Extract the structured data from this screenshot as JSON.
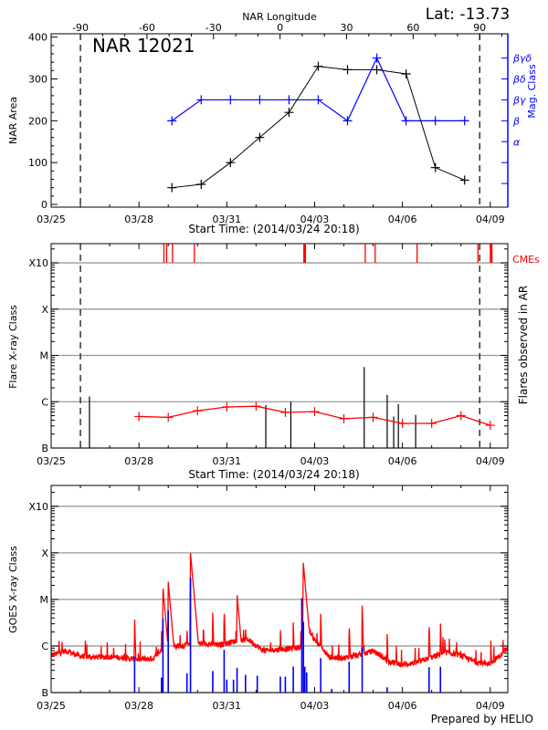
{
  "footer": "Prepared by HELIO",
  "chart_data": [
    {
      "type": "line",
      "title": "NAR 12021",
      "annotation": "Lat: -13.73",
      "top_xlabel": "NAR Longitude",
      "xlabel": "Start Time: (2014/03/24 20:18)",
      "ylabel": "NAR Area",
      "y2label": "Mag. Class",
      "xlim": [
        "03/25 00:00",
        "04/09 14:24"
      ],
      "ylim": [
        -6.5,
        408
      ],
      "yticks": [
        0,
        100,
        200,
        300,
        400
      ],
      "xticks": [
        "03/25",
        "03/28",
        "03/31",
        "04/03",
        "04/06",
        "04/09"
      ],
      "top_ticks": [
        -90,
        -60,
        -30,
        0,
        30,
        60,
        90
      ],
      "limb_lines": [
        "03/26 00:00",
        "04/08 15:20"
      ],
      "grid": false,
      "x": [
        "03/29 03:00",
        "03/30 03:00",
        "03/31 03:00",
        "04/01 03:00",
        "04/02 03:00",
        "04/03 03:00",
        "04/04 03:00",
        "04/05 03:00",
        "04/06 03:00",
        "04/07 03:00",
        "04/08 03:00"
      ],
      "series": [
        {
          "values": [
            40,
            48,
            100,
            160,
            220,
            330,
            322,
            322,
            312,
            88,
            58
          ],
          "color": "#000000"
        }
      ],
      "mag_class": {
        "levels": [
          "",
          "",
          "α",
          "β",
          "βγ",
          "βδ",
          "βγδ"
        ],
        "values": [
          "β",
          "βγ",
          "βγ",
          "βγ",
          "βγ",
          "βγ",
          "β",
          "βγδ",
          "β",
          "β",
          "β"
        ],
        "color": "#0000ff"
      }
    },
    {
      "type": "line",
      "xlabel": "Start Time: (2014/03/24 20:18)",
      "ylabel": "Flare X-ray Class",
      "y2label": "Flares observed in AR",
      "cme_label": "CMEs",
      "yscale": "log",
      "xlim": [
        "03/25 00:00",
        "04/09 14:24"
      ],
      "ylim": [
        1e-07,
        0.0026
      ],
      "yticks": [
        {
          "label": "B",
          "value": 1e-07
        },
        {
          "label": "C",
          "value": 1e-06
        },
        {
          "label": "M",
          "value": 1e-05
        },
        {
          "label": "X",
          "value": 0.0001
        },
        {
          "label": "X10",
          "value": 0.001
        }
      ],
      "xticks": [
        "03/25",
        "03/28",
        "03/31",
        "04/03",
        "04/06",
        "04/09"
      ],
      "limb_lines": [
        "03/26 00:00",
        "04/08 15:20"
      ],
      "grid": true,
      "background_series": {
        "color": "#ff0000",
        "x": [
          "03/28 00:00",
          "03/29 00:00",
          "03/30 00:00",
          "03/31 00:00",
          "04/01 00:00",
          "04/02 00:00",
          "04/03 00:00",
          "04/04 00:00",
          "04/05 00:00",
          "04/06 00:00",
          "04/07 00:00",
          "04/08 00:00",
          "04/09 00:00"
        ],
        "values": [
          4.8e-07,
          4.6e-07,
          6.4e-07,
          7.7e-07,
          8e-07,
          5.9e-07,
          6.1e-07,
          4.3e-07,
          4.6e-07,
          3.4e-07,
          3.4e-07,
          5e-07,
          3.1e-07
        ]
      },
      "flares": {
        "color": "#000000",
        "x": [
          "03/26 07:25",
          "04/01 08:00",
          "04/02 04:30",
          "04/04 16:40",
          "04/05 11:30",
          "04/05 16:50",
          "04/05 20:40",
          "04/06 10:50"
        ],
        "values": [
          1.3e-06,
          8.5e-07,
          1e-06,
          5.6e-06,
          1.4e-06,
          4.8e-07,
          8.9e-07,
          5.2e-07
        ]
      },
      "cmes": {
        "color": "#ff0000",
        "x": [
          "03/28 20:25",
          "03/28 22:40",
          "03/29 03:30",
          "03/29 21:25",
          "04/02 15:50",
          "04/04 17:30",
          "04/05 01:40",
          "04/06 12:00",
          "04/08 13:55",
          "04/09 00:45"
        ],
        "wide": [
          false,
          false,
          false,
          false,
          true,
          false,
          false,
          false,
          false,
          true
        ]
      }
    },
    {
      "type": "line",
      "ylabel": "GOES X-ray Class",
      "yscale": "log",
      "xlim": [
        "03/25 00:00",
        "04/09 14:24"
      ],
      "ylim": [
        1e-07,
        0.0028
      ],
      "yticks": [
        {
          "label": "B",
          "value": 1e-07
        },
        {
          "label": "C",
          "value": 1e-06
        },
        {
          "label": "M",
          "value": 1e-05
        },
        {
          "label": "X",
          "value": 0.0001
        },
        {
          "label": "X10",
          "value": 0.001
        }
      ],
      "xticks": [
        "03/25",
        "03/28",
        "03/31",
        "04/03",
        "04/06",
        "04/09"
      ],
      "grid": true,
      "long_channel": {
        "color": "#ff0000",
        "baseline_x": [
          "03/25 00:00",
          "03/25 12:00",
          "03/26 00:00",
          "03/26 12:00",
          "03/27 00:00",
          "03/27 12:00",
          "03/28 00:00",
          "03/28 12:00",
          "03/28 20:00",
          "03/29 06:00",
          "03/29 18:00",
          "03/30 06:00",
          "03/30 18:00",
          "03/31 06:00",
          "03/31 18:00",
          "04/01 06:00",
          "04/01 18:00",
          "04/02 06:00",
          "04/02 12:00",
          "04/02 18:00",
          "04/03 00:00",
          "04/03 06:00",
          "04/03 12:00",
          "04/04 00:00",
          "04/04 12:00",
          "04/05 00:00",
          "04/05 06:00",
          "04/05 12:00",
          "04/06 00:00",
          "04/06 12:00",
          "04/07 00:00",
          "04/07 12:00",
          "04/08 00:00",
          "04/08 12:00",
          "04/09 00:00",
          "04/09 10:00",
          "04/09 14:24"
        ],
        "baseline": [
          6e-07,
          7.5e-07,
          5.8e-07,
          5.5e-07,
          5.6e-07,
          5.3e-07,
          4.9e-07,
          5.2e-07,
          8.5e-07,
          9.5e-07,
          1e-06,
          1.1e-06,
          1e-06,
          1.2e-06,
          1.3e-06,
          7.5e-07,
          8e-07,
          8.5e-07,
          9e-07,
          2.5e-06,
          1.3e-06,
          8.5e-07,
          5.5e-07,
          5.3e-07,
          6e-07,
          7.5e-07,
          6e-07,
          4.5e-07,
          3.8e-07,
          4.2e-07,
          5.5e-07,
          7e-07,
          6e-07,
          4.3e-07,
          4e-07,
          6.5e-07,
          1e-06
        ],
        "peaks_x": [
          "03/25 06:30",
          "03/26 04:00",
          "03/26 22:00",
          "03/27 20:25",
          "03/28 18:30",
          "03/28 19:40",
          "03/29 00:00",
          "03/29 15:20",
          "03/29 18:15",
          "03/29 20:10",
          "03/30 12:30",
          "03/30 21:50",
          "03/31 08:25",
          "03/31 15:20",
          "04/01 12:00",
          "04/01 19:55",
          "04/02 06:30",
          "04/02 14:40",
          "04/03 05:00",
          "04/04 04:20",
          "04/04 15:00",
          "04/05 11:30",
          "04/05 19:00",
          "04/06 21:50",
          "04/07 07:10",
          "04/07 14:25",
          "04/09 00:30"
        ],
        "peaks": [
          1.3e-06,
          1.3e-06,
          1.2e-06,
          4.4e-06,
          2.1e-06,
          1.8e-05,
          2.4e-05,
          3e-06,
          0.0001,
          3.2e-06,
          5.2e-06,
          6.9e-06,
          1.3e-05,
          3.2e-06,
          1.2e-06,
          2.6e-06,
          3.2e-06,
          6.5e-05,
          4.9e-06,
          3.4e-06,
          7.4e-06,
          1.8e-06,
          1e-06,
          3.6e-06,
          3.6e-06,
          1.7e-06,
          1.3e-06
        ]
      },
      "short_channel": {
        "color": "#0000ff",
        "peaks_x": [
          "03/27 20:25",
          "03/28 18:30",
          "03/28 19:40",
          "03/29 00:00",
          "03/29 15:20",
          "03/29 18:15",
          "03/30 12:30",
          "03/30 21:50",
          "03/31 00:00",
          "03/31 05:30",
          "03/31 08:25",
          "03/31 15:20",
          "04/01 01:00",
          "04/01 19:55",
          "04/02 00:00",
          "04/02 06:30",
          "04/02 13:30",
          "04/02 14:50",
          "04/02 16:00",
          "04/02 17:30",
          "04/03 05:00",
          "04/03 14:00",
          "04/04 04:20",
          "04/04 15:00",
          "04/05 11:30",
          "04/06 21:50",
          "04/07 07:10"
        ],
        "peaks": [
          5.9e-07,
          2.1e-07,
          3.9e-06,
          5.8e-06,
          2.6e-07,
          2.9e-05,
          2.9e-07,
          8.3e-07,
          1.9e-07,
          1.9e-07,
          3.4e-07,
          2.4e-07,
          2.3e-07,
          2.2e-07,
          2.2e-07,
          3.6e-07,
          1.07e-05,
          3.3e-06,
          3.6e-07,
          2.7e-07,
          5.5e-07,
          1.2e-07,
          4.6e-07,
          9.3e-07,
          1.3e-07,
          3.5e-07,
          3.6e-07
        ]
      }
    }
  ]
}
